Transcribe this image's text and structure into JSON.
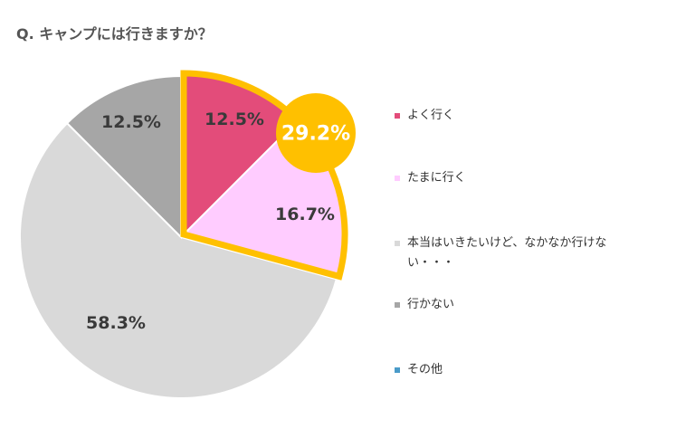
{
  "chart_data": {
    "type": "pie",
    "title": "Q. キャンプには行きますか？",
    "categories": [
      "よく行く",
      "たまに行く",
      "本当はいきたいけど、なかなか行けない・・・",
      "行かない",
      "その他"
    ],
    "values": [
      12.5,
      16.7,
      58.3,
      12.5,
      0
    ],
    "value_labels": [
      "12.5%",
      "16.7%",
      "58.3%",
      "12.5%",
      ""
    ],
    "colors": [
      "#E34C7A",
      "#FFCCFF",
      "#D9D9D9",
      "#A6A6A6",
      "#4A9BC9"
    ],
    "highlight": {
      "label": "29.2%",
      "categories": [
        "よく行く",
        "たまに行く"
      ],
      "color": "#FFC000"
    },
    "legend": "right"
  }
}
